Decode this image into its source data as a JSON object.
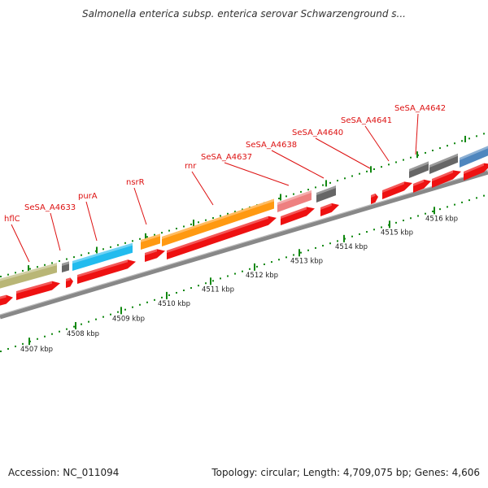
{
  "header": {
    "title": "Salmonella enterica subsp. enterica serovar Schwarzenground s..."
  },
  "footer": {
    "accession": "Accession: NC_011094",
    "topology": "Topology: circular; Length: 4,709,075 bp; Genes: 4,606"
  },
  "colors": {
    "gene_label": "#dd1111",
    "cds_arrow": "#ee1111",
    "backbone": "#888888",
    "ruler_tick": "#118811",
    "olive": "#b9b676",
    "cyan": "#22bbee",
    "orange": "#ff9911",
    "pink": "#ee8080",
    "gray": "#666666",
    "steel_blue": "#4f86be"
  },
  "gene_labels": [
    {
      "id": "hflC",
      "text": "hflC"
    },
    {
      "id": "sesa-a4633",
      "text": "SeSA_A4633"
    },
    {
      "id": "pura",
      "text": "purA"
    },
    {
      "id": "nsrr",
      "text": "nsrR"
    },
    {
      "id": "rnr",
      "text": "rnr"
    },
    {
      "id": "sesa-a4637",
      "text": "SeSA_A4637"
    },
    {
      "id": "sesa-a4638",
      "text": "SeSA_A4638"
    },
    {
      "id": "sesa-a4640",
      "text": "SeSA_A4640"
    },
    {
      "id": "sesa-a4641",
      "text": "SeSA_A4641"
    },
    {
      "id": "sesa-a4642",
      "text": "SeSA_A4642"
    }
  ],
  "scale_labels": [
    {
      "id": "4507",
      "text": "4507 kbp"
    },
    {
      "id": "4508",
      "text": "4508 kbp"
    },
    {
      "id": "4509",
      "text": "4509 kbp"
    },
    {
      "id": "4510",
      "text": "4510 kbp"
    },
    {
      "id": "4511",
      "text": "4511 kbp"
    },
    {
      "id": "4512",
      "text": "4512 kbp"
    },
    {
      "id": "4513",
      "text": "4513 kbp"
    },
    {
      "id": "4514",
      "text": "4514 kbp"
    },
    {
      "id": "4515",
      "text": "4515 kbp"
    },
    {
      "id": "4516",
      "text": "4516 kbp"
    }
  ]
}
